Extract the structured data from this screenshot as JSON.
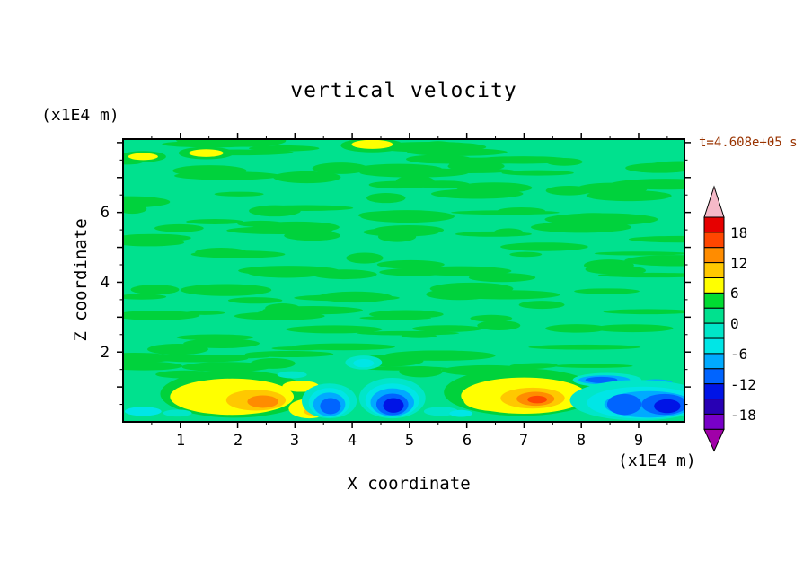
{
  "title": "vertical velocity",
  "time_label": "t=4.608e+05 s",
  "axes": {
    "x_label": "X coordinate",
    "x_unit": "(x1E4 m)",
    "y_label": "Z coordinate",
    "y_unit": "(x1E4 m)",
    "x_ticks": [
      "1",
      "2",
      "3",
      "4",
      "5",
      "6",
      "7",
      "8",
      "9"
    ],
    "y_ticks": [
      "6",
      "4",
      "2"
    ]
  },
  "colorbar": {
    "labels": [
      "18",
      "12",
      "6",
      "0",
      "-6",
      "-12",
      "-18"
    ],
    "arrow_top_color": "#F5B9C8",
    "arrow_bottom_color": "#A000A8",
    "colors": [
      "#E60000",
      "#FF4600",
      "#FF8C00",
      "#FFC800",
      "#FFFF00",
      "#00DC32",
      "#00E18E",
      "#00E6C8",
      "#00E6E6",
      "#00AAFF",
      "#0064FF",
      "#0014E6",
      "#2800B4",
      "#7800C8"
    ]
  },
  "chart_data": {
    "type": "heatmap",
    "title": "vertical velocity",
    "xlabel": "X coordinate (x1E4 m)",
    "ylabel": "Z coordinate (x1E4 m)",
    "time_annotation": "t=4.608e+05 s",
    "x_range": [
      0,
      9.8
    ],
    "z_range": [
      0,
      8.1
    ],
    "contour_min": -21,
    "contour_max": 21,
    "contour_interval": 3,
    "colorbar_tick_values": [
      18,
      12,
      6,
      0,
      -6,
      -12,
      -18
    ],
    "x_centers": [
      0.5,
      1.5,
      2.5,
      3.5,
      4.5,
      5.5,
      6.5,
      7.5,
      8.5,
      9.5
    ],
    "z_centers_desc": [
      7.5,
      6.5,
      5.5,
      4.5,
      3.5,
      2.5,
      1.5,
      0.5
    ],
    "values": [
      [
        1,
        7,
        1,
        1,
        7,
        1,
        1,
        1,
        1,
        1
      ],
      [
        1,
        4,
        1,
        1,
        1,
        4,
        1,
        1,
        4,
        1
      ],
      [
        4,
        1,
        1,
        4,
        1,
        1,
        4,
        1,
        1,
        1
      ],
      [
        1,
        1,
        4,
        1,
        1,
        1,
        1,
        4,
        1,
        1
      ],
      [
        1,
        4,
        1,
        1,
        4,
        1,
        1,
        1,
        4,
        1
      ],
      [
        1,
        1,
        1,
        4,
        1,
        1,
        4,
        1,
        1,
        1
      ],
      [
        1,
        1,
        -1,
        1,
        -4,
        1,
        1,
        1,
        -4,
        -1
      ],
      [
        -4,
        7,
        10,
        -8,
        -14,
        -2,
        8,
        14,
        -8,
        -13
      ]
    ],
    "render": {
      "x_max": 9.8,
      "z_max": 8.1,
      "base_color": "#00E18E",
      "texture": {
        "seed": 42,
        "count": 135,
        "z_min": 1.25,
        "color": "#00D23C"
      },
      "features": [
        [
          1.95,
          0.8,
          1.3,
          0.68,
          "#00D23C"
        ],
        [
          1.9,
          0.72,
          1.08,
          0.52,
          "#FFFF00"
        ],
        [
          2.32,
          0.62,
          0.52,
          0.3,
          "#FFC800"
        ],
        [
          2.44,
          0.58,
          0.27,
          0.18,
          "#FF8C00"
        ],
        [
          3.1,
          1.02,
          0.32,
          0.16,
          "#FFFF00"
        ],
        [
          3.25,
          0.38,
          0.36,
          0.28,
          "#FFFF00"
        ],
        [
          3.32,
          0.3,
          0.16,
          0.12,
          "#FFC800"
        ],
        [
          3.6,
          0.6,
          0.48,
          0.5,
          "#00E6C8"
        ],
        [
          3.6,
          0.55,
          0.36,
          0.42,
          "#00E6E6"
        ],
        [
          3.6,
          0.5,
          0.28,
          0.34,
          "#00AAFF"
        ],
        [
          3.62,
          0.45,
          0.18,
          0.23,
          "#0064FF"
        ],
        [
          4.2,
          1.7,
          0.32,
          0.2,
          "#00E6C8"
        ],
        [
          4.2,
          1.68,
          0.18,
          0.12,
          "#00E6E6"
        ],
        [
          4.7,
          0.68,
          0.58,
          0.58,
          "#00E6C8"
        ],
        [
          4.7,
          0.62,
          0.47,
          0.48,
          "#00E6E6"
        ],
        [
          4.7,
          0.56,
          0.38,
          0.4,
          "#00AAFF"
        ],
        [
          4.7,
          0.5,
          0.28,
          0.31,
          "#0064FF"
        ],
        [
          4.72,
          0.47,
          0.18,
          0.21,
          "#0014E6"
        ],
        [
          5.55,
          0.3,
          0.3,
          0.13,
          "#00E6C8"
        ],
        [
          5.9,
          0.24,
          0.2,
          0.1,
          "#00E6E6"
        ],
        [
          6.95,
          0.85,
          1.35,
          0.68,
          "#00D23C"
        ],
        [
          6.55,
          0.6,
          0.6,
          0.3,
          "#FFFF00"
        ],
        [
          7.0,
          0.75,
          1.1,
          0.52,
          "#FFFF00"
        ],
        [
          7.15,
          0.68,
          0.56,
          0.3,
          "#FFC800"
        ],
        [
          7.2,
          0.66,
          0.33,
          0.2,
          "#FF8C00"
        ],
        [
          7.23,
          0.64,
          0.17,
          0.11,
          "#FF4600"
        ],
        [
          8.45,
          1.2,
          0.6,
          0.2,
          "#00E6C8"
        ],
        [
          8.4,
          1.2,
          0.45,
          0.13,
          "#00AAFF"
        ],
        [
          8.35,
          1.2,
          0.28,
          0.09,
          "#0064FF"
        ],
        [
          9.3,
          1.1,
          0.3,
          0.12,
          "#00AAFF"
        ],
        [
          9.0,
          0.62,
          1.2,
          0.58,
          "#00E6C8"
        ],
        [
          9.08,
          0.55,
          0.98,
          0.46,
          "#00E6E6"
        ],
        [
          9.18,
          0.5,
          0.78,
          0.38,
          "#00AAFF"
        ],
        [
          8.75,
          0.5,
          0.3,
          0.3,
          "#0064FF"
        ],
        [
          9.45,
          0.5,
          0.4,
          0.3,
          "#0064FF"
        ],
        [
          9.5,
          0.45,
          0.23,
          0.2,
          "#0014E6"
        ],
        [
          0.35,
          0.3,
          0.32,
          0.13,
          "#00E6E6"
        ],
        [
          0.95,
          0.25,
          0.25,
          0.1,
          "#00E6C8"
        ],
        [
          2.95,
          1.35,
          0.26,
          0.1,
          "#00E6C8"
        ],
        [
          0.35,
          7.6,
          0.4,
          0.16,
          "#00D23C"
        ],
        [
          0.35,
          7.6,
          0.26,
          0.1,
          "#FFFF00"
        ],
        [
          1.45,
          7.7,
          0.48,
          0.18,
          "#00D23C"
        ],
        [
          1.45,
          7.7,
          0.3,
          0.11,
          "#FFFF00"
        ],
        [
          4.35,
          7.92,
          0.55,
          0.2,
          "#00D23C"
        ],
        [
          4.35,
          7.95,
          0.36,
          0.13,
          "#FFFF00"
        ]
      ]
    }
  }
}
